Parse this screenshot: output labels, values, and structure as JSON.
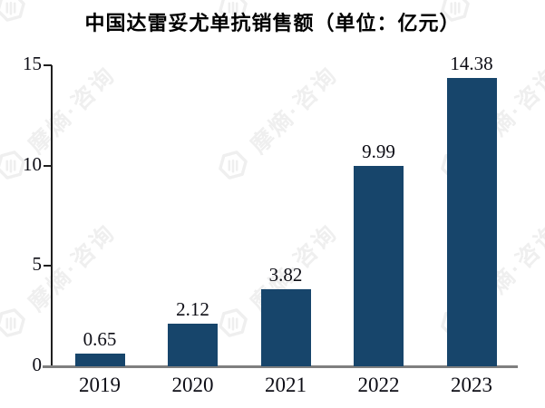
{
  "title": "中国达雷妥尤单抗销售额（单位：亿元）",
  "watermark": {
    "text": "摩熵·咨询",
    "icon": "hexagon-logo-icon"
  },
  "colors": {
    "bar": "#17456B",
    "axis": "#1f1f1f",
    "baseline": "#7f7f7f",
    "label": "#0d0d15",
    "watermark": "#efefef"
  },
  "chart_data": {
    "type": "bar",
    "title": "中国达雷妥尤单抗销售额（单位：亿元）",
    "unit": "亿元",
    "categories": [
      "2019",
      "2020",
      "2021",
      "2022",
      "2023"
    ],
    "values": [
      0.65,
      2.12,
      3.82,
      9.99,
      14.38
    ],
    "value_labels": [
      "0.65",
      "2.12",
      "3.82",
      "9.99",
      "14.38"
    ],
    "xlabel": "",
    "ylabel": "",
    "ylim": [
      0,
      15
    ],
    "yticks": [
      0,
      5,
      10,
      15
    ],
    "ytick_labels": [
      "0",
      "5",
      "10",
      "15"
    ],
    "grid": false,
    "legend": null,
    "bar_color": "#17456B"
  }
}
